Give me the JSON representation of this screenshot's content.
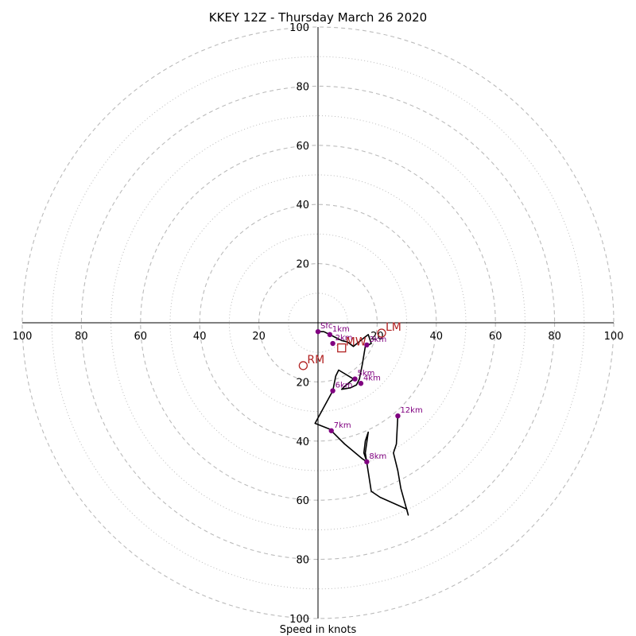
{
  "chart_data": {
    "type": "hodograph",
    "title": "KKEY 12Z - Thursday March 26 2020",
    "xlabel": "Speed in knots",
    "range": 100,
    "major_rings": [
      20,
      40,
      60,
      80,
      100
    ],
    "minor_rings": [
      10,
      30,
      50,
      70,
      90
    ],
    "tick_labels": {
      "right": [
        "20",
        "40",
        "60",
        "80",
        "100"
      ],
      "left": [
        "20",
        "40",
        "60",
        "80",
        "100"
      ],
      "up": [
        "20",
        "40",
        "60",
        "80",
        "100"
      ],
      "down": [
        "20",
        "40",
        "60",
        "80",
        "100"
      ]
    },
    "colors": {
      "trace": "#000000",
      "height_marker": "#800080",
      "motion_marker": "#b22222",
      "grid": "#bbbbbb"
    },
    "trace": [
      [
        0,
        -3
      ],
      [
        2,
        -3
      ],
      [
        4,
        -4
      ],
      [
        6,
        -5
      ],
      [
        8,
        -6
      ],
      [
        10,
        -6.5
      ],
      [
        12,
        -8
      ],
      [
        15,
        -5.5
      ],
      [
        17,
        -4
      ],
      [
        18,
        -7
      ],
      [
        16,
        -8
      ],
      [
        15,
        -14
      ],
      [
        14,
        -19
      ],
      [
        13,
        -21
      ],
      [
        11,
        -22
      ],
      [
        8,
        -22.5
      ],
      [
        9,
        -21.5
      ],
      [
        12,
        -19
      ],
      [
        7,
        -16
      ],
      [
        6,
        -18
      ],
      [
        5,
        -23
      ],
      [
        -1,
        -34
      ],
      [
        4,
        -36
      ],
      [
        7,
        -39
      ],
      [
        9,
        -41
      ],
      [
        12,
        -43.5
      ],
      [
        15,
        -46
      ],
      [
        16.5,
        -47
      ],
      [
        15.5,
        -44
      ],
      [
        16,
        -40
      ],
      [
        17,
        -37
      ],
      [
        16,
        -44
      ],
      [
        18,
        -57
      ],
      [
        21,
        -59
      ],
      [
        30,
        -63
      ],
      [
        30.5,
        -65
      ],
      [
        28,
        -56
      ],
      [
        27,
        -50
      ],
      [
        25.5,
        -44
      ],
      [
        26.5,
        -41
      ],
      [
        27,
        -31.5
      ]
    ],
    "height_points": [
      {
        "label": "Sfc",
        "u": 0,
        "v": -3
      },
      {
        "label": "1km",
        "u": 4,
        "v": -4
      },
      {
        "label": "2km",
        "u": 5,
        "v": -7
      },
      {
        "label": "3km",
        "u": 16.5,
        "v": -7.5
      },
      {
        "label": "4km",
        "u": 14.5,
        "v": -20.5
      },
      {
        "label": "5km",
        "u": 12.5,
        "v": -19
      },
      {
        "label": "6km",
        "u": 5,
        "v": -23
      },
      {
        "label": "7km",
        "u": 4.5,
        "v": -36.5
      },
      {
        "label": "8km",
        "u": 16.5,
        "v": -47
      },
      {
        "label": "12km",
        "u": 27,
        "v": -31.5
      }
    ],
    "motion_markers": [
      {
        "label": "RM",
        "u": -5,
        "v": -14.5,
        "shape": "circle"
      },
      {
        "label": "LM",
        "u": 21.5,
        "v": -3.5,
        "shape": "circle"
      },
      {
        "label": "MW",
        "u": 8,
        "v": -8.5,
        "shape": "square"
      }
    ]
  }
}
